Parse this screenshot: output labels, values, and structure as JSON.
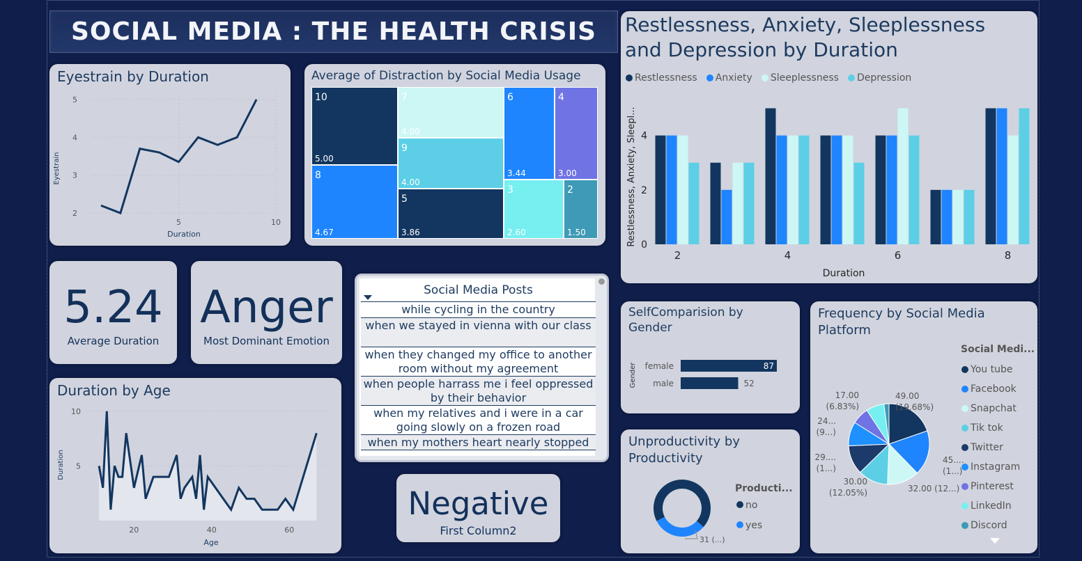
{
  "title": "SOCIAL MEDIA : THE HEALTH CRISIS",
  "colors": {
    "navy": "#12365f",
    "blue": "#1f85fe",
    "pale": "#ccf7f5",
    "cyan": "#5ccfe6",
    "purple": "#6f73e4",
    "teal": "#3e9ab6",
    "aqua": "#77eef0"
  },
  "eyestrain": {
    "title": "Eyestrain by Duration",
    "xlabel": "Duration",
    "ylabel": "Eyestrain"
  },
  "distraction": {
    "title": "Average of Distraction by Social Media Usage",
    "cells": [
      {
        "label": "10",
        "value": "5.00"
      },
      {
        "label": "8",
        "value": "4.67"
      },
      {
        "label": "7",
        "value": "4.00"
      },
      {
        "label": "9",
        "value": "4.00"
      },
      {
        "label": "5",
        "value": "3.86"
      },
      {
        "label": "6",
        "value": "3.44"
      },
      {
        "label": "4",
        "value": "3.00"
      },
      {
        "label": "3",
        "value": "2.60"
      },
      {
        "label": "2",
        "value": "1.50"
      }
    ]
  },
  "rasd": {
    "title_line1": "Restlessness, Anxiety, Sleeplessness",
    "title_line2": "and Depression by Duration",
    "legend": [
      "Restlessness",
      "Anxiety",
      "Sleeplessness",
      "Depression"
    ],
    "xlabel": "Duration",
    "ylabel": "Restlessness, Anxiety, Sleepl..."
  },
  "kpi_duration": {
    "value": "5.24",
    "label": "Average Duration"
  },
  "kpi_emotion": {
    "value": "Anger",
    "label": "Most Dominant Emotion"
  },
  "kpi_sentiment": {
    "value": "Negative",
    "label": "First Column2"
  },
  "posts": {
    "header": "Social Media Posts",
    "rows": [
      "while cycling in the country",
      "when we stayed in vienna with our class",
      "when they changed my office to another room without my agreement",
      "when people harrass me i feel oppressed by their behavior",
      "when my relatives and i were in a car going slowly on a frozen road",
      "when my mothers heart nearly stopped"
    ]
  },
  "duration_age": {
    "title": "Duration by Age",
    "xlabel": "Age",
    "ylabel": "Duration"
  },
  "selfcomp": {
    "title_line1": "SelfComparision by",
    "title_line2": "Gender",
    "axis": "Gender",
    "bars": [
      {
        "label": "female",
        "value": 87
      },
      {
        "label": "male",
        "value": 52
      }
    ]
  },
  "unproductivity": {
    "title_line1": "Unproductivity by",
    "title_line2": "Productivity",
    "legend_title": "Producti...",
    "legend": [
      "no",
      "yes"
    ],
    "slice_label": "31 (...)"
  },
  "frequency": {
    "title_line1": "Frequency by Social Media",
    "title_line2": "Platform",
    "legend_title": "Social Medi...",
    "legend": [
      "You tube",
      "Facebook",
      "Snapchat",
      "Tik tok",
      "Twitter",
      "Instagram",
      "Pinterest",
      "LinkedIn",
      "Discord"
    ],
    "labels": [
      {
        "l1": "49.00",
        "l2": "(19.68%)"
      },
      {
        "l1": "45....",
        "l2": "(1...)"
      },
      {
        "l1": "32.00 (12...)",
        "l2": ""
      },
      {
        "l1": "30.00",
        "l2": "(12.05%)"
      },
      {
        "l1": "29....",
        "l2": "(1...)"
      },
      {
        "l1": "24...",
        "l2": "(9...)"
      },
      {
        "l1": "17.00",
        "l2": "(6.83%)"
      }
    ]
  },
  "chart_data": [
    {
      "type": "line",
      "title": "Eyestrain by Duration",
      "xlabel": "Duration",
      "ylabel": "Eyestrain",
      "x": [
        1,
        2,
        3,
        4,
        5,
        6,
        7,
        8,
        9,
        10
      ],
      "y": [
        2.2,
        2.0,
        3.7,
        3.6,
        3.35,
        4.0,
        3.8,
        4.0,
        5.0,
        null
      ],
      "xticks": [
        5,
        10
      ],
      "yticks": [
        2,
        3,
        4,
        5
      ],
      "xlim": [
        0.5,
        10
      ],
      "ylim": [
        1.8,
        5.2
      ]
    },
    {
      "type": "bar",
      "title": "Restlessness, Anxiety, Sleeplessness and Depression by Duration",
      "xlabel": "Duration",
      "ylabel": "Restlessness, Anxiety, Sleepl...",
      "categories": [
        2,
        3,
        4,
        5,
        6,
        7,
        8
      ],
      "series": [
        {
          "name": "Restlessness",
          "values": [
            4,
            3,
            5,
            4,
            4,
            2,
            5
          ]
        },
        {
          "name": "Anxiety",
          "values": [
            4,
            2,
            4,
            4,
            4,
            2,
            5
          ]
        },
        {
          "name": "Sleeplessness",
          "values": [
            4,
            3,
            4,
            4,
            5,
            2,
            4
          ]
        },
        {
          "name": "Depression",
          "values": [
            3,
            3,
            4,
            3,
            4,
            2,
            5
          ]
        }
      ],
      "xticks": [
        2,
        4,
        6,
        8
      ],
      "yticks": [
        0,
        2,
        4
      ],
      "ylim": [
        0,
        5.5
      ]
    },
    {
      "type": "area",
      "title": "Duration by Age",
      "xlabel": "Age",
      "ylabel": "Duration",
      "x": [
        11,
        12,
        13,
        14,
        15,
        16,
        17,
        18,
        20,
        22,
        23,
        25,
        27,
        29,
        31,
        32,
        33,
        35,
        36,
        37,
        38,
        39,
        41,
        43,
        45,
        47,
        49,
        51,
        53,
        55,
        57,
        59,
        61,
        67
      ],
      "y": [
        5,
        3,
        10,
        1,
        5,
        4,
        4,
        8,
        3,
        6,
        2,
        4,
        4,
        4,
        6,
        2,
        3,
        4,
        2,
        6,
        1,
        4,
        3,
        2,
        1,
        3,
        2,
        2,
        1,
        1,
        1,
        2,
        1,
        8
      ],
      "xticks": [
        20,
        40,
        60
      ],
      "yticks": [
        5,
        10
      ],
      "xlim": [
        9,
        70
      ],
      "ylim": [
        0,
        10.5
      ]
    },
    {
      "type": "bar",
      "title": "SelfComparision by Gender",
      "categories": [
        "female",
        "male"
      ],
      "values": [
        87,
        52
      ]
    },
    {
      "type": "pie",
      "title": "Unproductivity by Productivity",
      "categories": [
        "no",
        "yes"
      ],
      "values": [
        69,
        31
      ]
    },
    {
      "type": "pie",
      "title": "Frequency by Social Media Platform",
      "categories": [
        "You tube",
        "Facebook",
        "Snapchat",
        "Tik tok",
        "Twitter",
        "Instagram",
        "Pinterest",
        "LinkedIn",
        "Discord"
      ],
      "values": [
        49,
        45,
        32,
        30,
        29,
        24,
        17,
        18,
        5
      ]
    }
  ]
}
